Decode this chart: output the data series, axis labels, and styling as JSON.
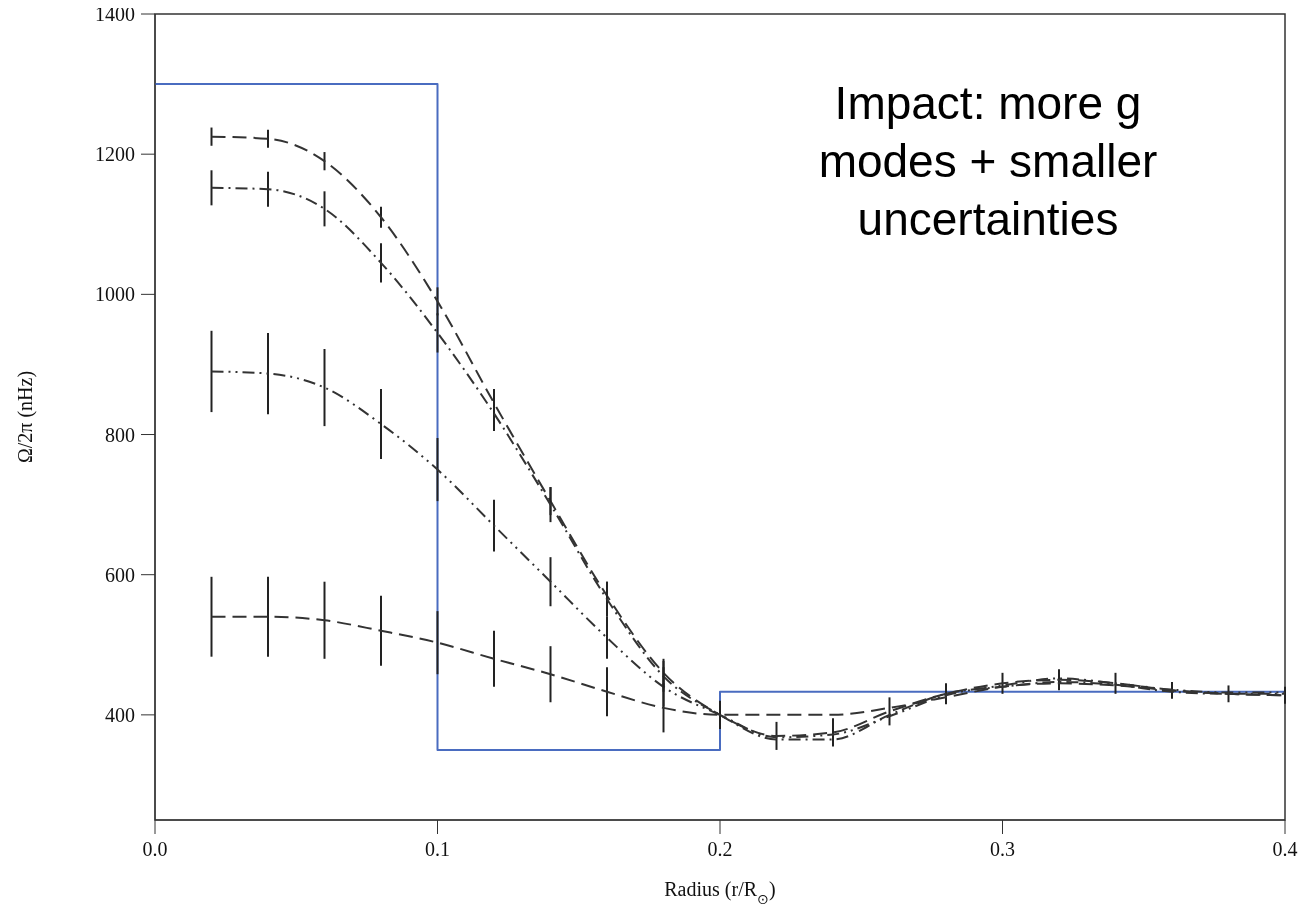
{
  "chart_data": {
    "type": "line",
    "xlabel": "Radius (r/R$_{⊙}$)",
    "ylabel": "Ω/2π (nHz)",
    "annotations": [
      "Impact: more g modes + smaller uncertainties"
    ],
    "x": [
      0.02,
      0.04,
      0.06,
      0.08,
      0.1,
      0.12,
      0.14,
      0.16,
      0.18,
      0.2,
      0.22,
      0.24,
      0.26,
      0.28,
      0.3,
      0.32,
      0.34,
      0.36,
      0.38,
      0.4
    ],
    "xlim": [
      0,
      0.4
    ],
    "xticks": [
      {
        "value": 0,
        "label": "0.0"
      },
      0.1,
      0.2,
      0.3,
      0.4
    ],
    "ylim": [
      250,
      1400
    ],
    "yticks": [
      400,
      600,
      800,
      1000,
      1200,
      1400
    ],
    "grid": false,
    "marker": "none",
    "series": [
      {
        "type": "step",
        "color": "#4a6cc0",
        "line_style": "solid",
        "x": [
          0,
          0.1,
          0.2,
          0.4
        ],
        "values": [
          1300,
          350,
          433,
          433
        ]
      },
      {
        "color": "#333333",
        "line_style": "dashed",
        "values": [
          1225,
          1222,
          1190,
          1110,
          990,
          845,
          705,
          570,
          460,
          400,
          370,
          375,
          405,
          430,
          445,
          450,
          445,
          435,
          430,
          428
        ],
        "errors": [
          13,
          13,
          13,
          15,
          20,
          20,
          20,
          20,
          20,
          20,
          20,
          20,
          20,
          15,
          15,
          15,
          15,
          12,
          12,
          12
        ]
      },
      {
        "color": "#333333",
        "line_style": "dashdot",
        "values": [
          1152,
          1150,
          1122,
          1045,
          945,
          830,
          700,
          565,
          455,
          400,
          365,
          365,
          400,
          430,
          440,
          447,
          443,
          433,
          430,
          430
        ],
        "errors": [
          25,
          25,
          25,
          28,
          28,
          25,
          25,
          25,
          22,
          null,
          null,
          null,
          null,
          null,
          null,
          null,
          null,
          null,
          null,
          null
        ]
      },
      {
        "color": "#333333",
        "line_style": "dashdotdot",
        "values": [
          890,
          887,
          867,
          815,
          750,
          670,
          590,
          510,
          440,
          400,
          368,
          372,
          398,
          428,
          442,
          452,
          445,
          436,
          432,
          432
        ],
        "errors": [
          58,
          58,
          55,
          50,
          45,
          37,
          35,
          30,
          28,
          null,
          null,
          null,
          null,
          null,
          null,
          null,
          null,
          null,
          null,
          null
        ]
      },
      {
        "color": "#333333",
        "line_style": "dashed",
        "values": [
          540,
          540,
          535,
          520,
          503,
          480,
          458,
          433,
          410,
          400,
          400,
          400,
          410,
          425,
          440,
          445,
          442,
          435,
          430,
          428
        ],
        "errors": [
          57,
          57,
          55,
          50,
          45,
          40,
          40,
          35,
          35,
          null,
          null,
          null,
          null,
          null,
          null,
          null,
          null,
          null,
          null,
          null
        ]
      }
    ]
  }
}
